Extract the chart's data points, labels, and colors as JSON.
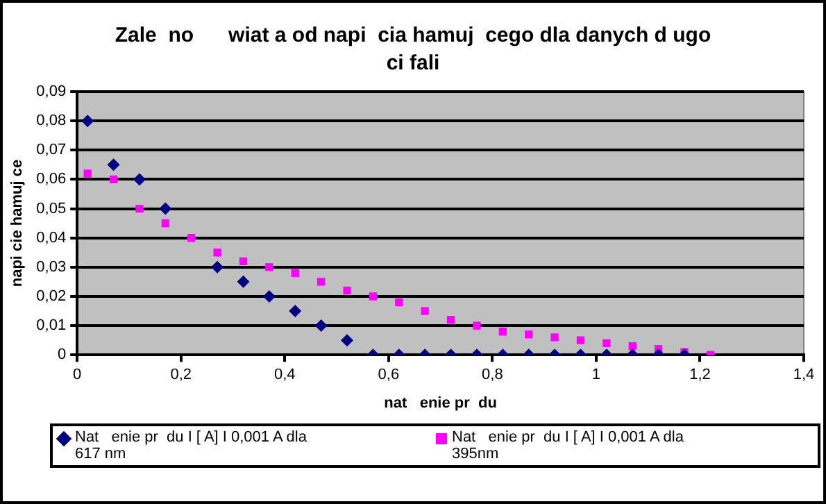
{
  "chart_data": {
    "type": "scatter",
    "title": "Zale  no      wiat a od napi  cia hamuj  cego dla danych d ugo  ci fali",
    "xlabel": "nat   enie pr  du",
    "ylabel": "napi cie hamuj ce",
    "xlim": [
      0,
      1.4
    ],
    "xticks": [
      0,
      {
        "value": 0.2,
        "label": "0,2"
      },
      {
        "value": 0.4,
        "label": "0,4"
      },
      {
        "value": 0.6,
        "label": "0,6"
      },
      {
        "value": 0.8,
        "label": "0,8"
      },
      1,
      {
        "value": 1.2,
        "label": "1,2"
      },
      {
        "value": 1.4,
        "label": "1,4"
      }
    ],
    "ylim": [
      0,
      0.09
    ],
    "yticks": [
      0,
      {
        "value": 0.01,
        "label": "0,01"
      },
      {
        "value": 0.02,
        "label": "0,02"
      },
      {
        "value": 0.03,
        "label": "0,03"
      },
      {
        "value": 0.04,
        "label": "0,04"
      },
      {
        "value": 0.05,
        "label": "0,05"
      },
      {
        "value": 0.06,
        "label": "0,06"
      },
      {
        "value": 0.07,
        "label": "0,07"
      },
      {
        "value": 0.08,
        "label": "0,08"
      },
      {
        "value": 0.09,
        "label": "0,09"
      }
    ],
    "grid": "y",
    "legend": "bottom",
    "series": [
      {
        "name": "Nat   enie pr  du I [ A] I 0,001 A dla 617 nm",
        "color": "#000080",
        "marker": "diamond",
        "x": [
          0.02,
          0.07,
          0.12,
          0.17,
          0.27,
          0.32,
          0.37,
          0.42,
          0.47,
          0.52,
          0.57,
          0.62,
          0.67,
          0.72,
          0.77,
          0.82,
          0.87,
          0.92,
          0.97,
          1.02,
          1.07,
          1.12,
          1.17
        ],
        "values": [
          0.08,
          0.065,
          0.06,
          0.05,
          0.03,
          0.025,
          0.02,
          0.015,
          0.01,
          0.005,
          0,
          0,
          0,
          0,
          0,
          0,
          0,
          0,
          0,
          0,
          0,
          0,
          0
        ]
      },
      {
        "name": "Nat   enie pr  du I [ A] I 0,001 A dla 395nm",
        "color": "#ff00ff",
        "marker": "square",
        "x": [
          0.02,
          0.07,
          0.12,
          0.17,
          0.22,
          0.27,
          0.32,
          0.37,
          0.42,
          0.47,
          0.52,
          0.57,
          0.62,
          0.67,
          0.72,
          0.77,
          0.82,
          0.87,
          0.92,
          0.97,
          1.02,
          1.07,
          1.12,
          1.17,
          1.22
        ],
        "values": [
          0.062,
          0.06,
          0.05,
          0.045,
          0.04,
          0.035,
          0.032,
          0.03,
          0.028,
          0.025,
          0.022,
          0.02,
          0.018,
          0.015,
          0.012,
          0.01,
          0.008,
          0.007,
          0.006,
          0.005,
          0.004,
          0.003,
          0.002,
          0.001,
          0
        ]
      }
    ]
  }
}
